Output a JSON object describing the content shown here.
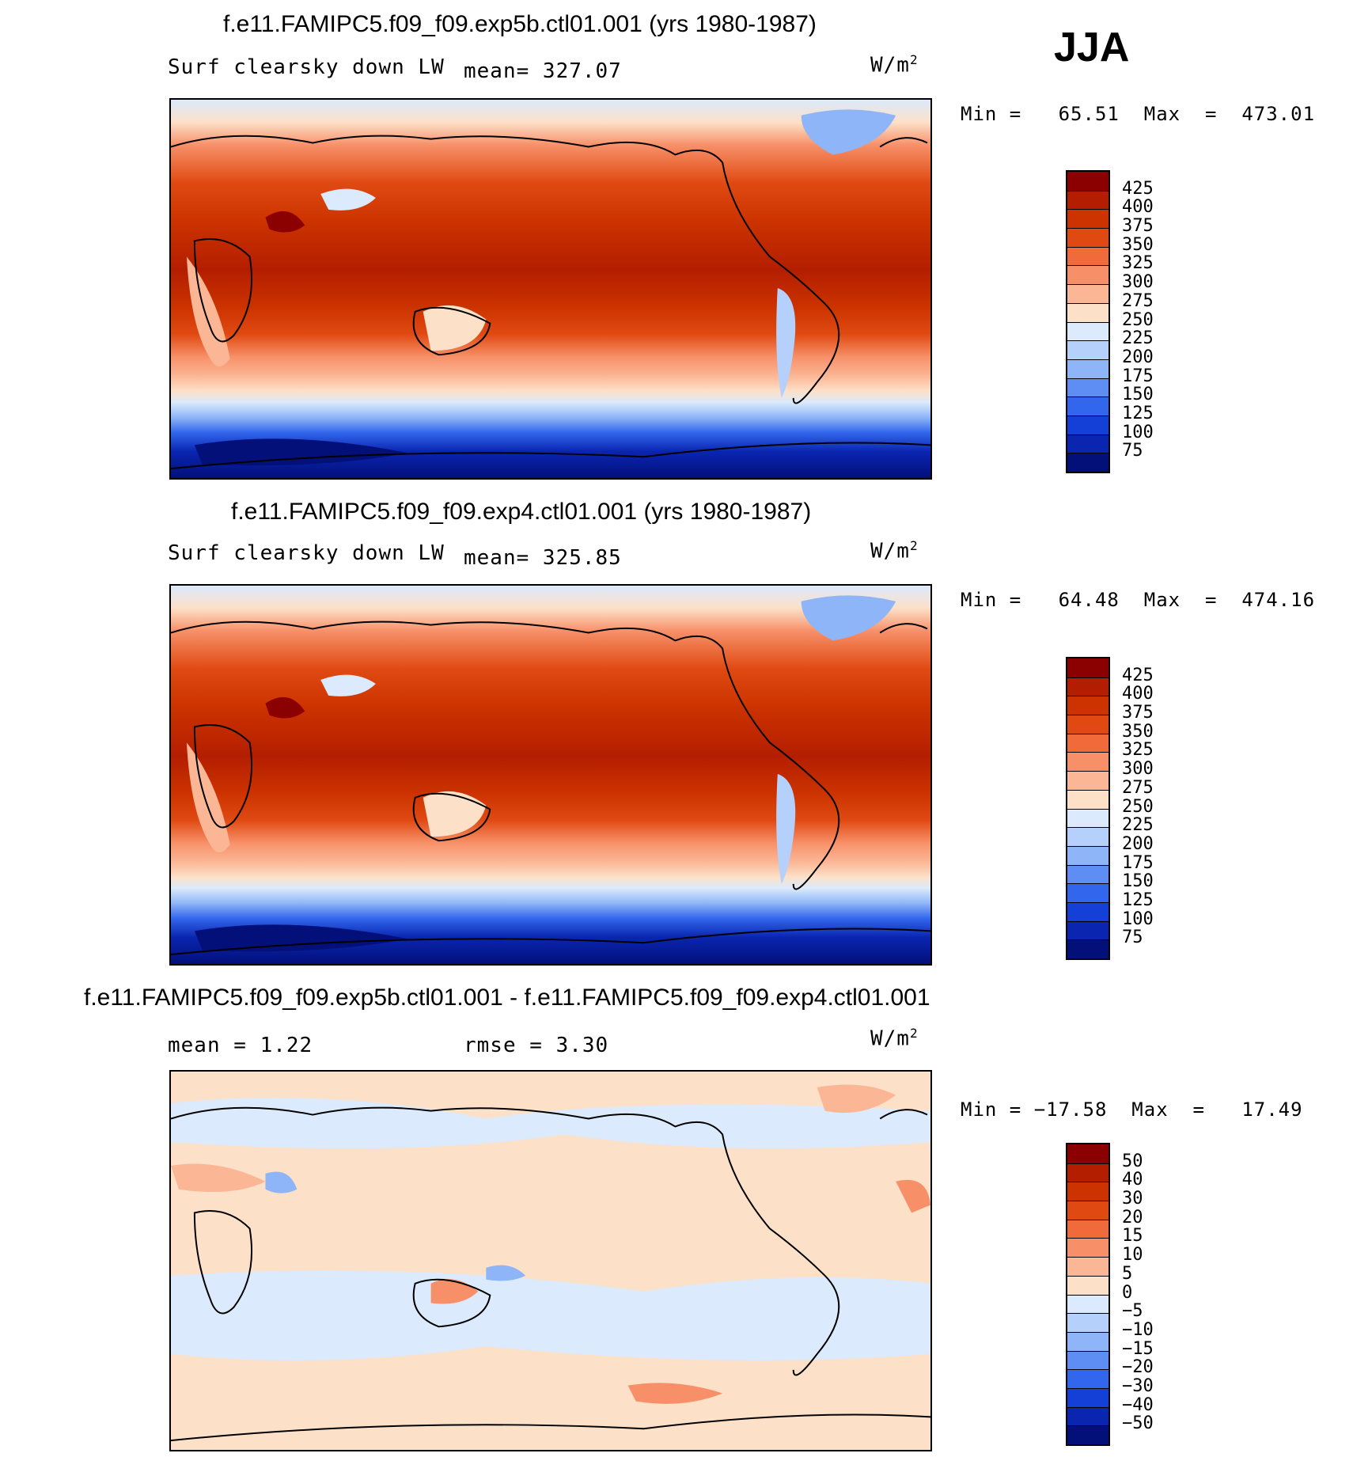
{
  "season": "JJA",
  "panels": [
    {
      "title": "f.e11.FAMIPC5.f09_f09.exp5b.ctl01.001 (yrs 1980-1987)",
      "left_label": "Surf clearsky down LW",
      "center_label": "mean= 327.07",
      "units": "W/m",
      "units_exp": "2",
      "minmax": "Min =   65.51  Max  =  473.01",
      "mean_value": 327.07,
      "min_value": 65.51,
      "max_value": 473.01,
      "colorbar": {
        "labels": [
          "425",
          "400",
          "375",
          "350",
          "325",
          "300",
          "275",
          "250",
          "225",
          "200",
          "175",
          "150",
          "125",
          "100",
          "75"
        ],
        "colors": [
          "#8b0000",
          "#b31e00",
          "#cc3300",
          "#e04a12",
          "#f06a3a",
          "#f79069",
          "#fbb695",
          "#fde0c8",
          "#dbeafc",
          "#b5d1fb",
          "#8eb5f7",
          "#5e8ef3",
          "#3266ec",
          "#1540d8",
          "#0a25b0",
          "#03107a"
        ]
      }
    },
    {
      "title": "f.e11.FAMIPC5.f09_f09.exp4.ctl01.001 (yrs 1980-1987)",
      "left_label": "Surf clearsky down LW",
      "center_label": "mean= 325.85",
      "units": "W/m",
      "units_exp": "2",
      "minmax": "Min =   64.48  Max  =  474.16",
      "mean_value": 325.85,
      "min_value": 64.48,
      "max_value": 474.16,
      "colorbar": {
        "labels": [
          "425",
          "400",
          "375",
          "350",
          "325",
          "300",
          "275",
          "250",
          "225",
          "200",
          "175",
          "150",
          "125",
          "100",
          "75"
        ],
        "colors": [
          "#8b0000",
          "#b31e00",
          "#cc3300",
          "#e04a12",
          "#f06a3a",
          "#f79069",
          "#fbb695",
          "#fde0c8",
          "#dbeafc",
          "#b5d1fb",
          "#8eb5f7",
          "#5e8ef3",
          "#3266ec",
          "#1540d8",
          "#0a25b0",
          "#03107a"
        ]
      }
    },
    {
      "title": "f.e11.FAMIPC5.f09_f09.exp5b.ctl01.001 - f.e11.FAMIPC5.f09_f09.exp4.ctl01.001",
      "left_label": "mean =    1.22",
      "center_label": "rmse =    3.30",
      "units": "W/m",
      "units_exp": "2",
      "minmax": "Min = −17.58  Max  =   17.49",
      "mean_value": 1.22,
      "rmse_value": 3.3,
      "min_value": -17.58,
      "max_value": 17.49,
      "colorbar": {
        "labels": [
          "50",
          "40",
          "30",
          "20",
          "15",
          "10",
          "5",
          "0",
          "−5",
          "−10",
          "−15",
          "−20",
          "−30",
          "−40",
          "−50"
        ],
        "colors": [
          "#8b0000",
          "#b31e00",
          "#cc3300",
          "#e04a12",
          "#f06a3a",
          "#f79069",
          "#fbb695",
          "#fde0c8",
          "#dbeafc",
          "#b5d1fb",
          "#8eb5f7",
          "#5e8ef3",
          "#3266ec",
          "#1540d8",
          "#0a25b0",
          "#03107a"
        ]
      }
    }
  ]
}
